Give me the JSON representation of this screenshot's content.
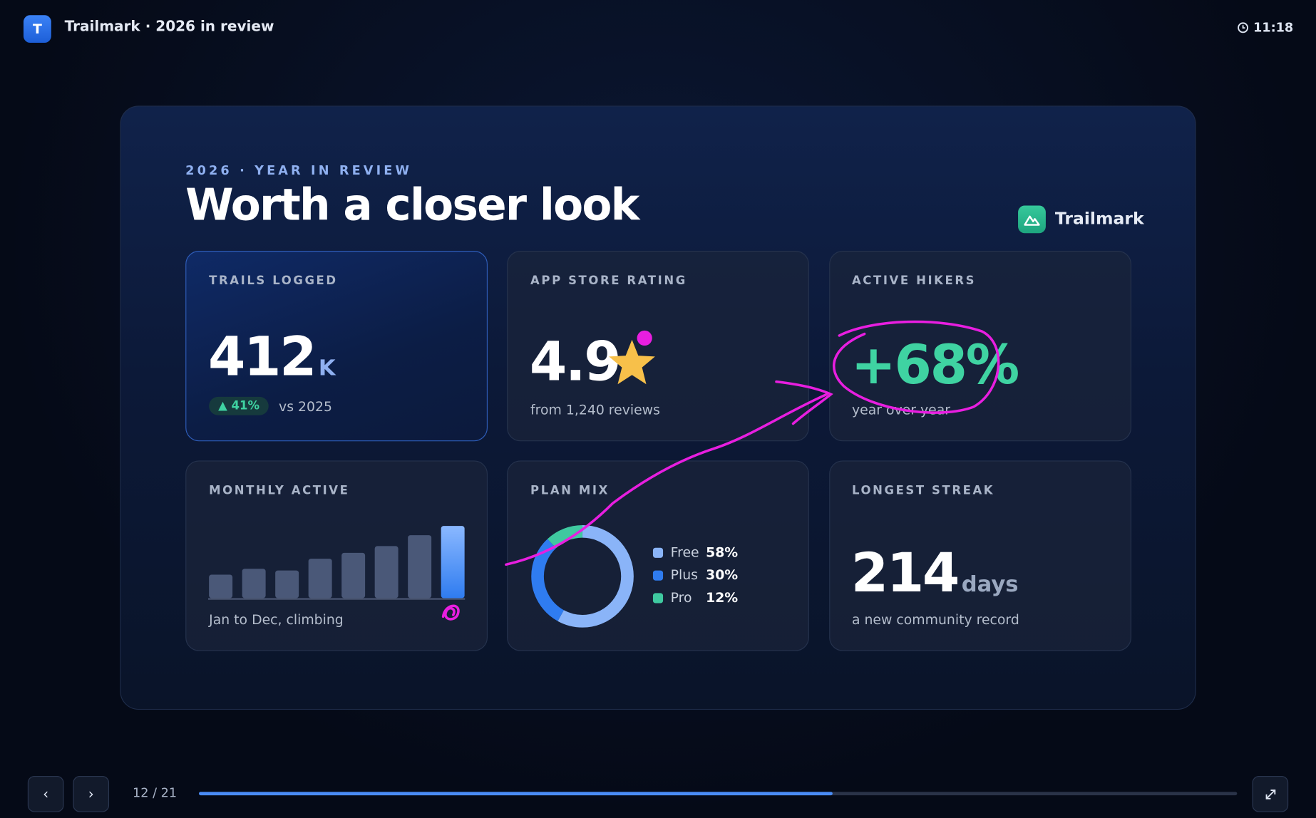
{
  "app": {
    "icon": "T",
    "title": "Trailmark · 2026 in review",
    "clock": "11:18"
  },
  "slide": {
    "eyebrow": "2026 · YEAR IN REVIEW",
    "title": "Worth a closer look",
    "brand": "Trailmark",
    "cards": [
      {
        "label": "TRAILS LOGGED",
        "value": "412",
        "unit": "K",
        "delta": "▲ 41%",
        "compare": "vs 2025"
      },
      {
        "label": "APP STORE RATING",
        "value": "4.9",
        "caption": "from 1,240 reviews"
      },
      {
        "label": "ACTIVE HIKERS",
        "value": "+68%",
        "caption": "year over year"
      },
      {
        "label": "MONTHLY ACTIVE",
        "caption": "Jan to Dec, climbing",
        "chart": {
          "type": "bar",
          "values": [
            28,
            35,
            33,
            47,
            54,
            62,
            75,
            86
          ],
          "ylim": [
            0,
            86
          ],
          "colors": [
            "#4a5878",
            "#4a5878",
            "#4a5878",
            "#4a5878",
            "#4a5878",
            "#4a5878",
            "#4a5878",
            "#3f86ff"
          ]
        }
      },
      {
        "label": "PLAN MIX",
        "chart": {
          "type": "pie",
          "categories": [
            "Free",
            "Plus",
            "Pro"
          ],
          "values": [
            58,
            30,
            12
          ],
          "value_labels": [
            "58%",
            "30%",
            "12%"
          ],
          "colors": [
            "#8ab4f8",
            "#2f7cf0",
            "#3fc9a0"
          ]
        }
      },
      {
        "label": "LONGEST STREAK",
        "value": "214",
        "unit": "days",
        "caption": "a new community record"
      }
    ]
  },
  "footer": {
    "prev": "‹",
    "next": "›",
    "page": "12 / 21"
  }
}
